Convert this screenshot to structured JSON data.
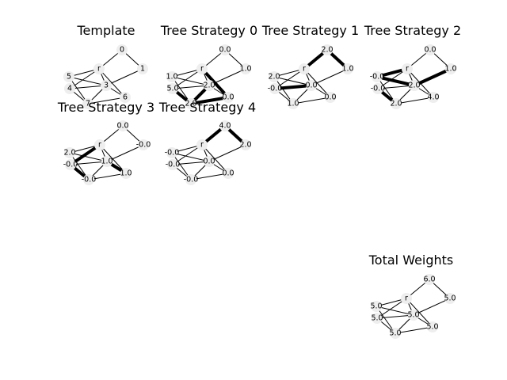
{
  "figure": {
    "panels": [
      {
        "id": "template",
        "title": "Template",
        "labels": {
          "r": "r",
          "0": "0",
          "1": "1",
          "5": "5",
          "3": "3",
          "4": "4",
          "6": "6",
          "7": "7"
        },
        "bold_edges": []
      },
      {
        "id": "tree-strategy-0",
        "title": "Tree Strategy 0",
        "labels": {
          "r": "r",
          "0": "0.0",
          "1": "1.0",
          "5": "1.0",
          "4": "5.0",
          "3": "2.0",
          "6": "0.0",
          "7": "2.0"
        },
        "bold_edges": [
          [
            "r",
            "6"
          ],
          [
            "3",
            "7"
          ],
          [
            "4",
            "7"
          ],
          [
            "7",
            "6"
          ]
        ]
      },
      {
        "id": "tree-strategy-1",
        "title": "Tree Strategy 1",
        "labels": {
          "r": "r",
          "0": "2.0",
          "1": "1.0",
          "5": "2.0",
          "4": "-0.0",
          "3": "0.0",
          "6": "0.0",
          "7": "1.0"
        },
        "bold_edges": [
          [
            "0",
            "r"
          ],
          [
            "0",
            "1"
          ],
          [
            "4",
            "3"
          ]
        ]
      },
      {
        "id": "tree-strategy-2",
        "title": "Tree Strategy 2",
        "labels": {
          "r": "r",
          "0": "0.0",
          "1": "1.0",
          "5": "-0.0",
          "4": "-0.0",
          "3": "2.0",
          "6": "4.0",
          "7": "2.0"
        },
        "bold_edges": [
          [
            "r",
            "5"
          ],
          [
            "5",
            "3"
          ],
          [
            "3",
            "1"
          ],
          [
            "4",
            "7"
          ]
        ]
      },
      {
        "id": "tree-strategy-3",
        "title": "Tree Strategy 3",
        "labels": {
          "r": "r",
          "0": "0.0",
          "1": "-0.0",
          "5": "2.0",
          "4": "-0.0",
          "3": "1.0",
          "6": "1.0",
          "7": "-0.0"
        },
        "bold_edges": [
          [
            "r",
            "4"
          ],
          [
            "4",
            "7"
          ],
          [
            "3",
            "6"
          ]
        ]
      },
      {
        "id": "tree-strategy-4",
        "title": "Tree Strategy 4",
        "labels": {
          "r": "r",
          "0": "4.0",
          "1": "2.0",
          "5": "-0.0",
          "4": "-0.0",
          "3": "0.0",
          "6": "0.0",
          "7": "-0.0"
        },
        "bold_edges": [
          [
            "0",
            "r"
          ],
          [
            "0",
            "1"
          ]
        ]
      },
      {
        "id": "total-weights",
        "title": "Total Weights",
        "labels": {
          "r": "r",
          "0": "6.0",
          "1": "5.0",
          "5": "5.0",
          "4": "5.0",
          "3": "5.0",
          "6": "5.0",
          "7": "5.0"
        },
        "bold_edges": []
      }
    ],
    "edges": [
      [
        "0",
        "r"
      ],
      [
        "0",
        "1"
      ],
      [
        "r",
        "5"
      ],
      [
        "r",
        "4"
      ],
      [
        "r",
        "3"
      ],
      [
        "r",
        "6"
      ],
      [
        "1",
        "3"
      ],
      [
        "5",
        "3"
      ],
      [
        "4",
        "3"
      ],
      [
        "5",
        "7"
      ],
      [
        "4",
        "7"
      ],
      [
        "3",
        "7"
      ],
      [
        "3",
        "6"
      ],
      [
        "7",
        "6"
      ]
    ]
  }
}
